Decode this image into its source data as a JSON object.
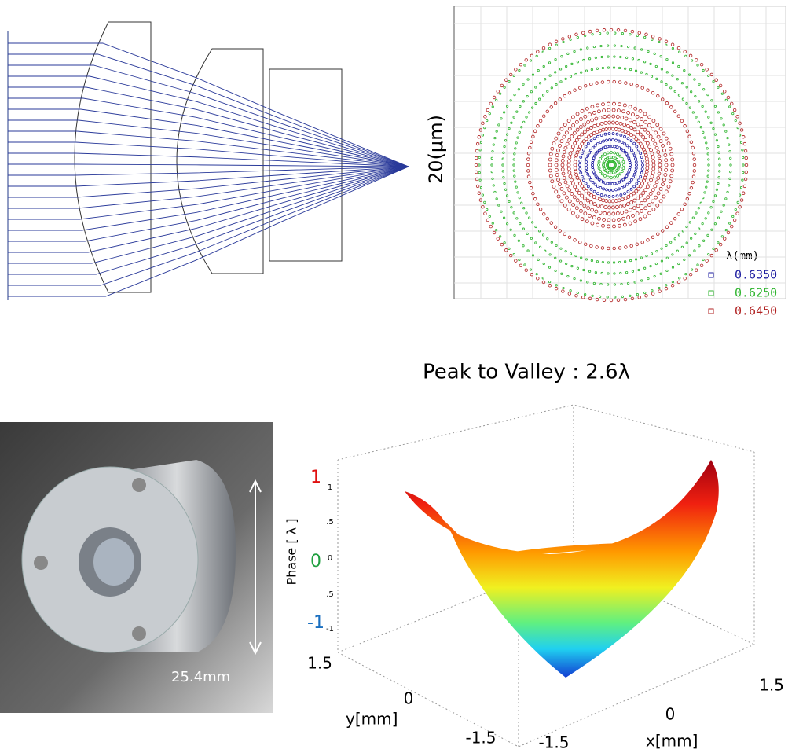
{
  "spot_diagram": {
    "scale_label": "20(μm)",
    "legend": {
      "title": "λ(mm)",
      "entries": [
        {
          "label": "0.6350",
          "color": "#1c1ca0"
        },
        {
          "label": "0.6250",
          "color": "#2fb52f"
        },
        {
          "label": "0.6450",
          "color": "#b02020"
        }
      ]
    }
  },
  "photo": {
    "dimension_label": "25.4mm"
  },
  "surface_plot": {
    "title": "Peak to Valley : 2.6λ",
    "z_label": "Phase [ λ ]",
    "z_annotations": [
      {
        "label": "1",
        "color": "#e01010"
      },
      {
        "label": "0",
        "color": "#20a040"
      },
      {
        "label": "-1",
        "color": "#1a6fc0"
      }
    ],
    "z_ticks": [
      "1",
      ".5",
      "0",
      ".5",
      "-1"
    ],
    "y_label": "y[mm]",
    "y_ticks": [
      "1.5",
      "0",
      "-1.5"
    ],
    "x_label": "x[mm]",
    "x_ticks": [
      "-1.5",
      "0",
      "1.5"
    ]
  }
}
